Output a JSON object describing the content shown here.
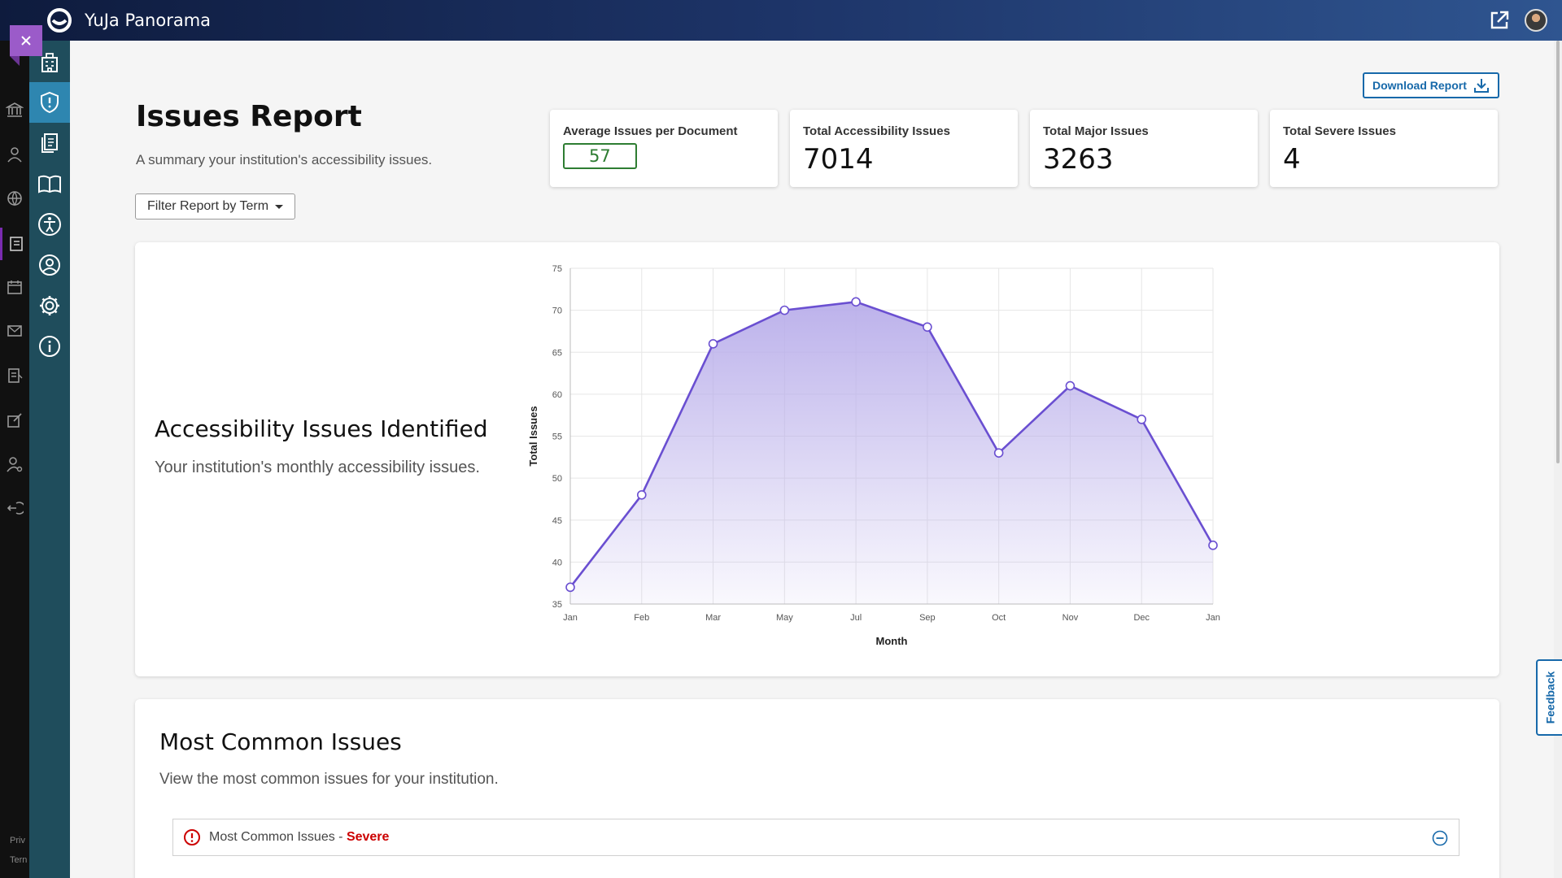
{
  "app": {
    "title": "YuJa Panorama"
  },
  "page": {
    "title": "Issues Report",
    "subtitle": "A summary your institution's accessibility issues.",
    "filter_label": "Filter Report by Term",
    "download_label": "Download Report"
  },
  "stats": [
    {
      "label": "Average Issues per Document",
      "value": "57"
    },
    {
      "label": "Total Accessibility Issues",
      "value": "7014"
    },
    {
      "label": "Total Major Issues",
      "value": "3263"
    },
    {
      "label": "Total Severe Issues",
      "value": "4"
    }
  ],
  "chart_section": {
    "heading": "Accessibility Issues Identified",
    "subheading": "Your institution's monthly accessibility issues."
  },
  "chart_data": {
    "type": "area",
    "categories": [
      "Jan",
      "Feb",
      "Mar",
      "May",
      "Jul",
      "Sep",
      "Oct",
      "Nov",
      "Dec",
      "Jan"
    ],
    "values": [
      37,
      48,
      66,
      70,
      71,
      68,
      53,
      61,
      57,
      42
    ],
    "xlabel": "Month",
    "ylabel": "Total Issues",
    "ylim": [
      35,
      75
    ],
    "yticks": [
      35,
      40,
      45,
      50,
      55,
      60,
      65,
      70,
      75
    ],
    "grid": true,
    "line_color": "#6a4fd1",
    "fill_color": "#b9aeea"
  },
  "common_issues": {
    "title": "Most Common Issues",
    "subtitle": "View the most common issues for your institution.",
    "accordion_label": "Most Common Issues - ",
    "accordion_severity": "Severe"
  },
  "rail_footer": {
    "privacy": "Priv",
    "terms": "Tern"
  },
  "feedback_label": "Feedback"
}
